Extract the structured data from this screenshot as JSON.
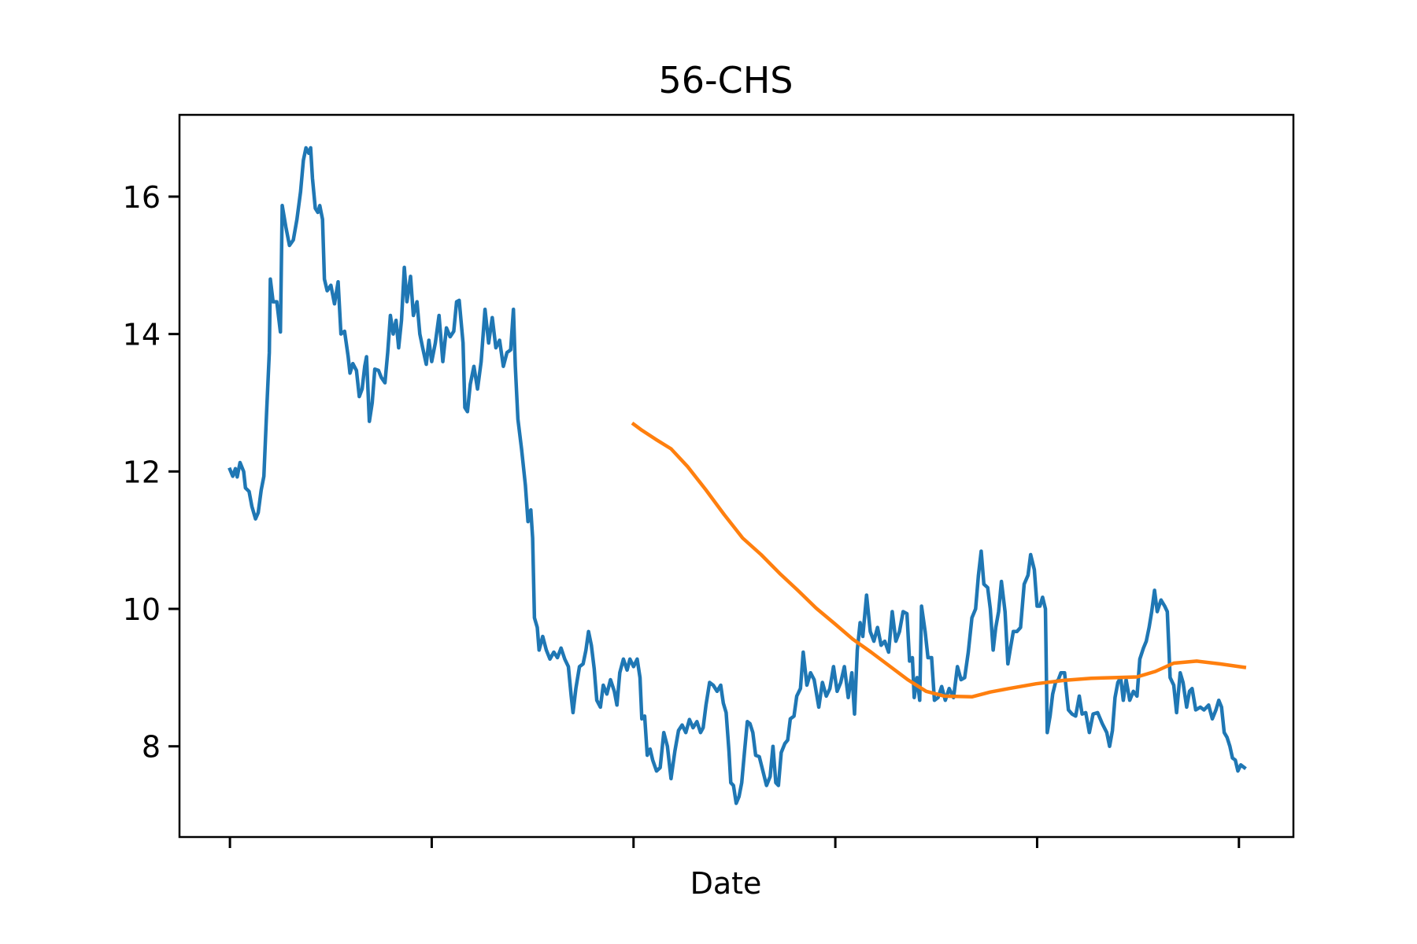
{
  "chart_data": {
    "type": "line",
    "title": "56-CHS",
    "xlabel": "Date",
    "xlim": [
      -25,
      527
    ],
    "xticks": [
      0,
      100,
      200,
      300,
      400,
      500
    ],
    "ylim": [
      6.68,
      17.19
    ],
    "yticks": [
      8,
      10,
      12,
      14,
      16
    ],
    "series": [
      {
        "color": "#1f77b4",
        "x": [
          0,
          1.4,
          2.7,
          3.6,
          5,
          6.8,
          7.7,
          9.5,
          10.9,
          12.7,
          14,
          15.5,
          16.8,
          18.2,
          19.5,
          20,
          21.4,
          23.2,
          25,
          25.9,
          27.7,
          29.5,
          31.4,
          33.2,
          35,
          36.4,
          37.7,
          39.1,
          40,
          40.9,
          42.3,
          43.6,
          44.5,
          45.9,
          46.8,
          48.2,
          50,
          51.8,
          53.6,
          55,
          56.8,
          58.6,
          59.5,
          60.9,
          62.7,
          64.1,
          65.5,
          66.8,
          67.7,
          69.1,
          70.5,
          71.8,
          73.6,
          75,
          76.8,
          78.2,
          79.5,
          80.9,
          82.3,
          83.6,
          85,
          86.4,
          87.7,
          89.5,
          90.9,
          92.7,
          94.1,
          95.5,
          97.3,
          98.6,
          100,
          101.8,
          103.6,
          105.5,
          107.3,
          109.1,
          110.9,
          112.3,
          113.6,
          115.5,
          116.4,
          117.7,
          119.1,
          120.9,
          122.7,
          124.5,
          126.4,
          128.2,
          130,
          131.8,
          133.6,
          135.5,
          137.3,
          139.1,
          140.5,
          141.4,
          142.7,
          144.5,
          146.4,
          147.7,
          149.1,
          150,
          150.9,
          152.3,
          153.2,
          155,
          156.8,
          158.6,
          160.5,
          162.3,
          164.1,
          165.9,
          167.7,
          169.1,
          170,
          171.4,
          173.2,
          175,
          176.4,
          177.7,
          179.1,
          180.5,
          181.8,
          183.6,
          185,
          186.8,
          188.6,
          190.5,
          191.8,
          193.2,
          195,
          196.8,
          198.2,
          200,
          201.8,
          203.2,
          204.1,
          205.5,
          206.8,
          208.2,
          209.5,
          211.4,
          213.2,
          215,
          216.8,
          218.6,
          220.5,
          222.3,
          224.1,
          225.9,
          227.7,
          229.5,
          231.4,
          233.2,
          234.5,
          235.9,
          237.7,
          239.5,
          241.4,
          243.2,
          244.5,
          245.9,
          247.3,
          248.2,
          249.5,
          250.9,
          252.3,
          253.6,
          255,
          256.4,
          257.7,
          259.1,
          260.5,
          262.3,
          264.1,
          265.9,
          267.7,
          269.1,
          270.5,
          271.8,
          273.2,
          275,
          276.4,
          277.7,
          279.5,
          280.9,
          282.7,
          284.1,
          285.9,
          287.7,
          289.5,
          291.8,
          293.6,
          295.5,
          297.3,
          299.1,
          300.9,
          302.7,
          304.5,
          306.4,
          308.2,
          309.5,
          310.9,
          312.3,
          313.6,
          315.5,
          317.3,
          319.1,
          320.9,
          322.7,
          324.5,
          326.4,
          328.2,
          330,
          331.8,
          333.6,
          335.5,
          336.8,
          338.2,
          339.1,
          340.5,
          341.8,
          342.7,
          344.5,
          345.9,
          347.7,
          349.1,
          350.9,
          352.7,
          354.5,
          356.4,
          358.6,
          360.5,
          362.3,
          364.1,
          365.9,
          367.7,
          369.5,
          370.9,
          372.3,
          373.6,
          375.5,
          376.8,
          378.2,
          379.5,
          380.9,
          382.3,
          384.1,
          385.5,
          386.8,
          388.2,
          390,
          391.8,
          393.6,
          395.5,
          396.8,
          398.6,
          400,
          401.4,
          402.7,
          404.1,
          405,
          406.4,
          407.7,
          409.1,
          410.5,
          411.8,
          413.6,
          415.5,
          417.3,
          419.1,
          420.9,
          422.3,
          424.1,
          425.9,
          427.7,
          430,
          432.3,
          434.5,
          435.9,
          437.3,
          438.6,
          440,
          441.4,
          442.7,
          444.1,
          445.9,
          447.7,
          449.5,
          450.9,
          452.7,
          454.1,
          455.5,
          456.8,
          458.2,
          459.5,
          461.4,
          463.2,
          464.5,
          465.9,
          467.7,
          469.1,
          470.9,
          472.3,
          474.1,
          475.5,
          476.8,
          478.6,
          480.9,
          482.7,
          485,
          486.8,
          488.6,
          490,
          491.4,
          492.7,
          494.1,
          495.5,
          496.8,
          498.2,
          499.5,
          500.9,
          502.7
        ],
        "values": [
          12.03,
          11.93,
          12.04,
          11.92,
          12.13,
          12.0,
          11.76,
          11.71,
          11.49,
          11.31,
          11.4,
          11.73,
          11.93,
          12.87,
          13.73,
          14.8,
          14.47,
          14.47,
          14.03,
          15.87,
          15.56,
          15.29,
          15.37,
          15.67,
          16.07,
          16.53,
          16.71,
          16.63,
          16.71,
          16.27,
          15.83,
          15.77,
          15.87,
          15.67,
          14.8,
          14.63,
          14.71,
          14.44,
          14.76,
          14.0,
          14.04,
          13.67,
          13.43,
          13.57,
          13.47,
          13.09,
          13.2,
          13.53,
          13.67,
          12.73,
          13.0,
          13.49,
          13.47,
          13.37,
          13.29,
          13.73,
          14.27,
          14.0,
          14.2,
          13.8,
          14.2,
          14.97,
          14.47,
          14.84,
          14.27,
          14.47,
          14.0,
          13.8,
          13.56,
          13.91,
          13.6,
          13.87,
          14.27,
          13.6,
          14.09,
          13.96,
          14.04,
          14.47,
          14.49,
          13.87,
          12.93,
          12.87,
          13.27,
          13.53,
          13.2,
          13.6,
          14.36,
          13.87,
          14.24,
          13.8,
          13.91,
          13.53,
          13.73,
          13.77,
          14.36,
          13.53,
          12.76,
          12.33,
          11.8,
          11.27,
          11.44,
          11.03,
          9.87,
          9.73,
          9.4,
          9.6,
          9.4,
          9.27,
          9.37,
          9.29,
          9.43,
          9.27,
          9.16,
          8.73,
          8.49,
          8.84,
          9.16,
          9.2,
          9.4,
          9.67,
          9.47,
          9.13,
          8.67,
          8.57,
          8.89,
          8.76,
          8.97,
          8.8,
          8.6,
          9.07,
          9.27,
          9.11,
          9.27,
          9.16,
          9.27,
          9.0,
          8.4,
          8.44,
          7.87,
          7.96,
          7.8,
          7.64,
          7.69,
          8.2,
          8.0,
          7.53,
          7.93,
          8.23,
          8.31,
          8.2,
          8.39,
          8.27,
          8.36,
          8.2,
          8.27,
          8.6,
          8.93,
          8.89,
          8.8,
          8.89,
          8.63,
          8.49,
          7.93,
          7.47,
          7.43,
          7.17,
          7.27,
          7.47,
          7.93,
          8.36,
          8.33,
          8.2,
          7.87,
          7.85,
          7.64,
          7.43,
          7.56,
          8.0,
          7.47,
          7.43,
          7.91,
          8.04,
          8.09,
          8.4,
          8.44,
          8.73,
          8.84,
          9.37,
          8.89,
          9.07,
          8.97,
          8.57,
          8.93,
          8.73,
          8.84,
          9.16,
          8.8,
          8.93,
          9.16,
          8.71,
          9.07,
          8.47,
          9.4,
          9.8,
          9.6,
          10.2,
          9.67,
          9.53,
          9.73,
          9.47,
          9.53,
          9.37,
          9.96,
          9.53,
          9.67,
          9.96,
          9.93,
          9.24,
          9.29,
          8.71,
          9.0,
          8.67,
          10.04,
          9.67,
          9.29,
          9.29,
          8.67,
          8.71,
          8.87,
          8.67,
          8.84,
          8.71,
          9.16,
          8.97,
          9.0,
          9.37,
          9.87,
          10.0,
          10.49,
          10.84,
          10.36,
          10.31,
          10.0,
          9.4,
          9.73,
          9.96,
          10.4,
          9.96,
          9.2,
          9.43,
          9.67,
          9.67,
          9.73,
          10.36,
          10.49,
          10.79,
          10.57,
          10.04,
          10.04,
          10.17,
          10.0,
          8.2,
          8.44,
          8.76,
          8.93,
          8.97,
          9.07,
          9.07,
          8.53,
          8.47,
          8.44,
          8.73,
          8.47,
          8.49,
          8.2,
          8.47,
          8.49,
          8.33,
          8.2,
          8.0,
          8.23,
          8.71,
          8.93,
          9.0,
          8.67,
          8.97,
          8.67,
          8.8,
          8.73,
          9.27,
          9.43,
          9.53,
          9.73,
          9.96,
          10.27,
          9.96,
          10.13,
          10.04,
          9.96,
          9.0,
          8.89,
          8.49,
          9.07,
          8.93,
          8.57,
          8.8,
          8.84,
          8.53,
          8.57,
          8.53,
          8.6,
          8.4,
          8.53,
          8.67,
          8.57,
          8.2,
          8.13,
          8.0,
          7.83,
          7.8,
          7.64,
          7.73,
          7.69
        ]
      },
      {
        "color": "#ff7f0e",
        "x": [
          200,
          204.1,
          210.9,
          218.6,
          226.8,
          235.9,
          245,
          254.1,
          263.2,
          272.3,
          281.4,
          290.5,
          299.5,
          308.6,
          317.7,
          326.8,
          335.9,
          345,
          354.1,
          367.7,
          376.8,
          385.9,
          399.5,
          413.2,
          426.8,
          438.2,
          449.5,
          458.6,
          467.7,
          479.1,
          490.5,
          502.7
        ],
        "values": [
          12.69,
          12.6,
          12.47,
          12.33,
          12.07,
          11.73,
          11.37,
          11.03,
          10.79,
          10.52,
          10.27,
          10.01,
          9.79,
          9.56,
          9.37,
          9.17,
          8.97,
          8.8,
          8.73,
          8.72,
          8.79,
          8.84,
          8.91,
          8.96,
          8.99,
          9.0,
          9.01,
          9.09,
          9.21,
          9.24,
          9.2,
          9.15
        ]
      }
    ]
  }
}
